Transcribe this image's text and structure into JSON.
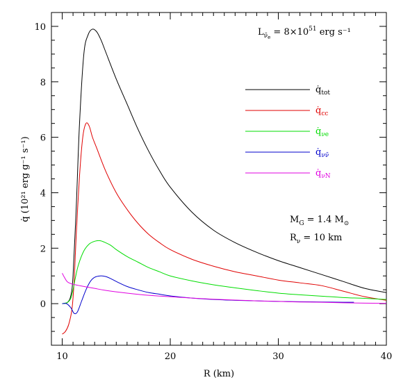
{
  "chart_data": {
    "type": "line",
    "xlabel": "R (km)",
    "ylabel": "q̇  (10²¹ erg g⁻¹ s⁻¹)",
    "xlim": [
      9,
      40
    ],
    "ylim": [
      -1.5,
      10.5
    ],
    "x_ticks": [
      10,
      20,
      30,
      40
    ],
    "y_ticks": [
      0,
      2,
      4,
      6,
      8,
      10
    ],
    "x_tick_labels": [
      "10",
      "20",
      "30",
      "40"
    ],
    "y_tick_labels": [
      "0",
      "2",
      "4",
      "6",
      "8",
      "10"
    ],
    "grid": false,
    "legend_position": "top-right",
    "annotations": {
      "luminosity": {
        "base": "L",
        "subscript": "ν̄",
        "subsub": "e",
        "rest": " = 8×10",
        "exp": "51",
        "unit": " erg  s⁻¹"
      },
      "mass": {
        "base": "M",
        "subscript": "G",
        "rest": " = 1.4 M",
        "sym": "⊙"
      },
      "radius": {
        "base": "R",
        "subscript": "ν",
        "rest": " = 10 km"
      }
    },
    "series": [
      {
        "name": "q̇tot",
        "label_main": "q̇",
        "label_sub": "tot",
        "color": "#000000",
        "x": [
          10.0,
          10.5,
          10.8,
          11.0,
          11.3,
          11.6,
          12.0,
          12.4,
          12.8,
          13.2,
          13.6,
          14.0,
          15.0,
          16.0,
          17.0,
          18.0,
          19.0,
          20.0,
          22.0,
          24.0,
          26.0,
          28.0,
          30.0,
          32.0,
          34.0,
          36.0,
          38.0,
          40.0
        ],
        "y": [
          0.0,
          0.05,
          0.3,
          1.0,
          3.5,
          6.5,
          9.0,
          9.7,
          9.9,
          9.8,
          9.5,
          9.1,
          8.1,
          7.2,
          6.3,
          5.5,
          4.8,
          4.2,
          3.3,
          2.65,
          2.2,
          1.85,
          1.55,
          1.3,
          1.05,
          0.8,
          0.55,
          0.4
        ]
      },
      {
        "name": "q̇cc",
        "label_main": "q̇",
        "label_sub": "cc",
        "color": "#e00000",
        "x": [
          10.0,
          10.3,
          10.6,
          10.9,
          11.1,
          11.3,
          11.6,
          11.9,
          12.2,
          12.5,
          12.8,
          13.2,
          14.0,
          15.0,
          16.0,
          17.0,
          18.0,
          19.0,
          20.0,
          22.0,
          24.0,
          26.0,
          28.0,
          30.0,
          32.0,
          34.0,
          36.0,
          38.0,
          40.0
        ],
        "y": [
          -1.1,
          -1.0,
          -0.75,
          -0.2,
          0.8,
          2.5,
          4.6,
          6.0,
          6.5,
          6.4,
          6.0,
          5.6,
          4.8,
          4.0,
          3.4,
          2.9,
          2.5,
          2.2,
          1.95,
          1.6,
          1.35,
          1.15,
          1.0,
          0.85,
          0.75,
          0.65,
          0.45,
          0.25,
          0.12
        ]
      },
      {
        "name": "q̇νe",
        "label_main": "q̇",
        "label_sub": "νe",
        "color": "#00dd00",
        "x": [
          10.0,
          10.5,
          10.8,
          11.0,
          11.2,
          11.5,
          12.0,
          12.5,
          13.0,
          13.5,
          14.0,
          14.5,
          15.0,
          16.0,
          17.0,
          18.0,
          19.0,
          20.0,
          22.0,
          24.0,
          26.0,
          28.0,
          30.0,
          32.0,
          34.0,
          36.0,
          38.0,
          40.0
        ],
        "y": [
          0.0,
          0.05,
          0.2,
          0.5,
          0.9,
          1.4,
          1.9,
          2.15,
          2.25,
          2.27,
          2.2,
          2.1,
          1.95,
          1.7,
          1.5,
          1.3,
          1.15,
          1.0,
          0.82,
          0.68,
          0.57,
          0.47,
          0.38,
          0.32,
          0.27,
          0.22,
          0.19,
          0.15
        ]
      },
      {
        "name": "q̇νν̄",
        "label_main": "q̇",
        "label_sub": "νν̄",
        "color": "#0000cc",
        "x": [
          10.0,
          10.4,
          10.8,
          11.1,
          11.4,
          11.8,
          12.2,
          12.6,
          13.0,
          13.5,
          14.0,
          14.5,
          15.0,
          16.0,
          17.0,
          18.0,
          19.0,
          20.0,
          22.0,
          24.0,
          26.0,
          28.0,
          30.0,
          32.0,
          34.0,
          36.0,
          37.0
        ],
        "y": [
          0.0,
          0.0,
          -0.15,
          -0.35,
          -0.3,
          0.1,
          0.5,
          0.8,
          0.95,
          1.0,
          0.98,
          0.9,
          0.8,
          0.62,
          0.5,
          0.4,
          0.34,
          0.28,
          0.2,
          0.15,
          0.12,
          0.1,
          0.08,
          0.07,
          0.06,
          0.05,
          0.05
        ]
      },
      {
        "name": "q̇νN",
        "label_main": "q̇",
        "label_sub": "νN",
        "color": "#e000e0",
        "x": [
          10.0,
          10.2,
          10.5,
          11.0,
          12.0,
          13.0,
          14.0,
          16.0,
          18.0,
          20.0,
          22.0,
          24.0,
          26.0,
          28.0,
          30.0,
          32.0,
          34.0,
          36.0,
          38.0,
          40.0
        ],
        "y": [
          1.1,
          0.95,
          0.78,
          0.7,
          0.62,
          0.55,
          0.48,
          0.38,
          0.3,
          0.25,
          0.2,
          0.16,
          0.13,
          0.1,
          0.08,
          0.06,
          0.05,
          0.03,
          0.02,
          0.01
        ]
      }
    ]
  }
}
